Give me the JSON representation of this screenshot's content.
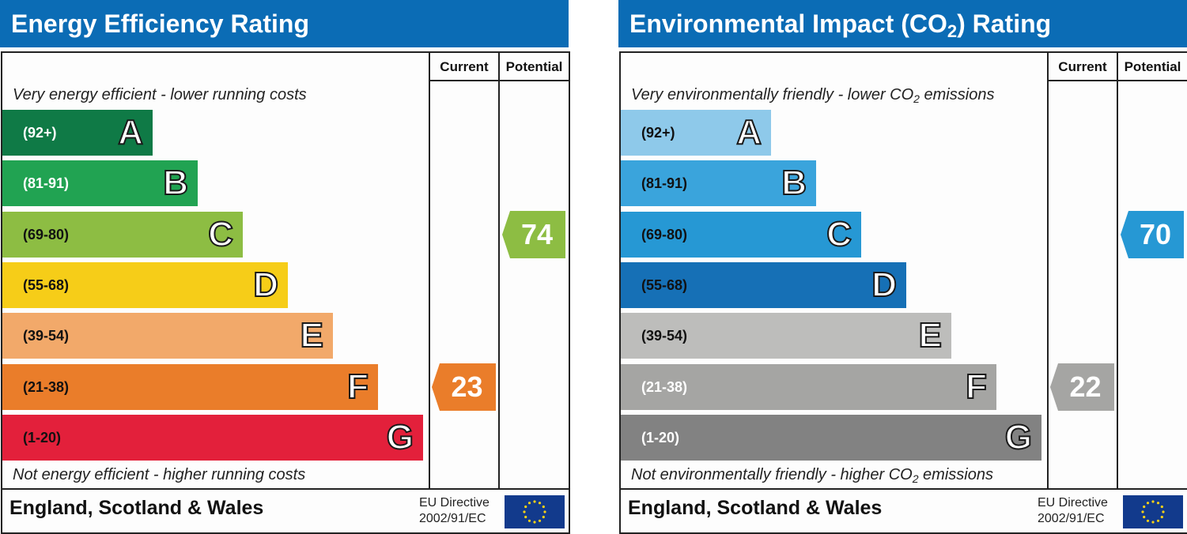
{
  "chart_data": [
    {
      "type": "bar",
      "title": "Energy Efficiency Rating",
      "column_headers": [
        "Current",
        "Potential"
      ],
      "top_note": "Very energy efficient - lower running costs",
      "bottom_note": "Not energy efficient - higher running costs",
      "bands": [
        {
          "letter": "A",
          "range": "(92+)",
          "color": "#0f7a46",
          "text_color": "#ffffff"
        },
        {
          "letter": "B",
          "range": "(81-91)",
          "color": "#21a352",
          "text_color": "#ffffff"
        },
        {
          "letter": "C",
          "range": "(69-80)",
          "color": "#8dbd43",
          "text_color": "#111111"
        },
        {
          "letter": "D",
          "range": "(55-68)",
          "color": "#f6cd18",
          "text_color": "#111111"
        },
        {
          "letter": "E",
          "range": "(39-54)",
          "color": "#f2a96a",
          "text_color": "#111111"
        },
        {
          "letter": "F",
          "range": "(21-38)",
          "color": "#ea7d2a",
          "text_color": "#111111"
        },
        {
          "letter": "G",
          "range": "(1-20)",
          "color": "#e3203b",
          "text_color": "#111111"
        }
      ],
      "current": {
        "value": 23,
        "band": "F",
        "color": "#ea7d2a"
      },
      "potential": {
        "value": 74,
        "band": "C",
        "color": "#8dbd43"
      },
      "footer": {
        "country": "England, Scotland & Wales",
        "directive_line1": "EU Directive",
        "directive_line2": "2002/91/EC"
      }
    },
    {
      "type": "bar",
      "title": "Environmental Impact (CO2) Rating",
      "title_parts": {
        "before": "Environmental Impact (CO",
        "sub": "2",
        "after": ") Rating"
      },
      "column_headers": [
        "Current",
        "Potential"
      ],
      "top_note": "Very environmentally friendly - lower CO2 emissions",
      "top_note_parts": {
        "before": "Very environmentally friendly - lower CO",
        "sub": "2",
        "after": " emissions"
      },
      "bottom_note": "Not environmentally friendly - higher CO2 emissions",
      "bottom_note_parts": {
        "before": "Not environmentally friendly - higher CO",
        "sub": "2",
        "after": " emissions"
      },
      "bands": [
        {
          "letter": "A",
          "range": "(92+)",
          "color": "#8ec9ea",
          "text_color": "#111111"
        },
        {
          "letter": "B",
          "range": "(81-91)",
          "color": "#3aa4dc",
          "text_color": "#111111"
        },
        {
          "letter": "C",
          "range": "(69-80)",
          "color": "#2698d4",
          "text_color": "#111111"
        },
        {
          "letter": "D",
          "range": "(55-68)",
          "color": "#1670b6",
          "text_color": "#111111"
        },
        {
          "letter": "E",
          "range": "(39-54)",
          "color": "#bdbdbb",
          "text_color": "#111111"
        },
        {
          "letter": "F",
          "range": "(21-38)",
          "color": "#a5a5a3",
          "text_color": "#ffffff"
        },
        {
          "letter": "G",
          "range": "(1-20)",
          "color": "#828282",
          "text_color": "#ffffff"
        }
      ],
      "current": {
        "value": 22,
        "band": "F",
        "color": "#a5a5a3"
      },
      "potential": {
        "value": 70,
        "band": "C",
        "color": "#2698d4"
      },
      "footer": {
        "country": "England, Scotland & Wales",
        "directive_line1": "EU Directive",
        "directive_line2": "2002/91/EC"
      }
    }
  ]
}
